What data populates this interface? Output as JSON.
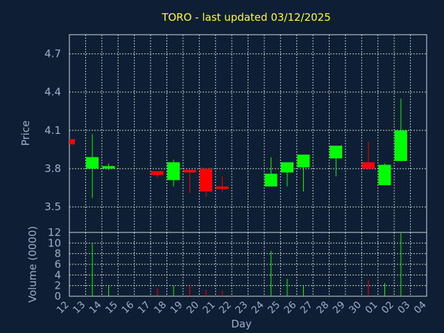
{
  "chart_data": [
    {
      "type": "candlestick",
      "title": "TORO - last updated 03/12/2025",
      "ylabel": "Price",
      "ylim": [
        3.3,
        4.85
      ],
      "yticks": [
        "3.5",
        "3.8",
        "4.1",
        "4.4",
        "4.7"
      ],
      "colors": {
        "up": "#00ff00",
        "down": "#ff0000"
      },
      "candles": [
        {
          "x": 0,
          "open": 4.03,
          "high": 4.03,
          "low": 3.99,
          "close": 3.99
        },
        {
          "x": 1,
          "open": 3.8,
          "high": 4.07,
          "low": 3.57,
          "close": 3.89
        },
        {
          "x": 2,
          "open": 3.8,
          "high": 3.84,
          "low": 3.79,
          "close": 3.82
        },
        {
          "x": 5,
          "open": 3.78,
          "high": 3.78,
          "low": 3.73,
          "close": 3.75
        },
        {
          "x": 6,
          "open": 3.71,
          "high": 3.87,
          "low": 3.66,
          "close": 3.85
        },
        {
          "x": 7,
          "open": 3.79,
          "high": 3.79,
          "low": 3.61,
          "close": 3.77
        },
        {
          "x": 8,
          "open": 3.8,
          "high": 3.8,
          "low": 3.58,
          "close": 3.62
        },
        {
          "x": 9,
          "open": 3.66,
          "high": 3.74,
          "low": 3.62,
          "close": 3.64
        },
        {
          "x": 12,
          "open": 3.66,
          "high": 3.89,
          "low": 3.66,
          "close": 3.76
        },
        {
          "x": 13,
          "open": 3.77,
          "high": 3.85,
          "low": 3.66,
          "close": 3.85
        },
        {
          "x": 14,
          "open": 3.81,
          "high": 3.91,
          "low": 3.62,
          "close": 3.91
        },
        {
          "x": 16,
          "open": 3.88,
          "high": 3.98,
          "low": 3.74,
          "close": 3.98
        },
        {
          "x": 18,
          "open": 3.85,
          "high": 4.01,
          "low": 3.8,
          "close": 3.8
        },
        {
          "x": 19,
          "open": 3.67,
          "high": 3.84,
          "low": 3.67,
          "close": 3.83
        },
        {
          "x": 20,
          "open": 3.86,
          "high": 4.35,
          "low": 3.86,
          "close": 4.1
        }
      ]
    },
    {
      "type": "bar",
      "ylabel": "Volume (0000)",
      "ylim": [
        0,
        12
      ],
      "yticks": [
        "0",
        "2",
        "4",
        "6",
        "8",
        "10",
        "12"
      ],
      "xlabel": "Day",
      "categories": [
        "12",
        "13",
        "14",
        "15",
        "16",
        "17",
        "18",
        "19",
        "20",
        "21",
        "22",
        "23",
        "24",
        "25",
        "26",
        "27",
        "28",
        "29",
        "30",
        "01",
        "02",
        "03",
        "04"
      ],
      "volumes": [
        {
          "x": 1,
          "value": 10.0,
          "dir": "up"
        },
        {
          "x": 2,
          "value": 2.0,
          "dir": "up"
        },
        {
          "x": 5,
          "value": 1.5,
          "dir": "down"
        },
        {
          "x": 6,
          "value": 2.0,
          "dir": "up"
        },
        {
          "x": 7,
          "value": 2.0,
          "dir": "down"
        },
        {
          "x": 8,
          "value": 1.2,
          "dir": "down"
        },
        {
          "x": 9,
          "value": 1.0,
          "dir": "down"
        },
        {
          "x": 12,
          "value": 8.5,
          "dir": "up"
        },
        {
          "x": 13,
          "value": 3.3,
          "dir": "up"
        },
        {
          "x": 14,
          "value": 2.0,
          "dir": "up"
        },
        {
          "x": 18,
          "value": 3.0,
          "dir": "down"
        },
        {
          "x": 19,
          "value": 2.5,
          "dir": "up"
        },
        {
          "x": 20,
          "value": 12.0,
          "dir": "up"
        }
      ]
    }
  ]
}
